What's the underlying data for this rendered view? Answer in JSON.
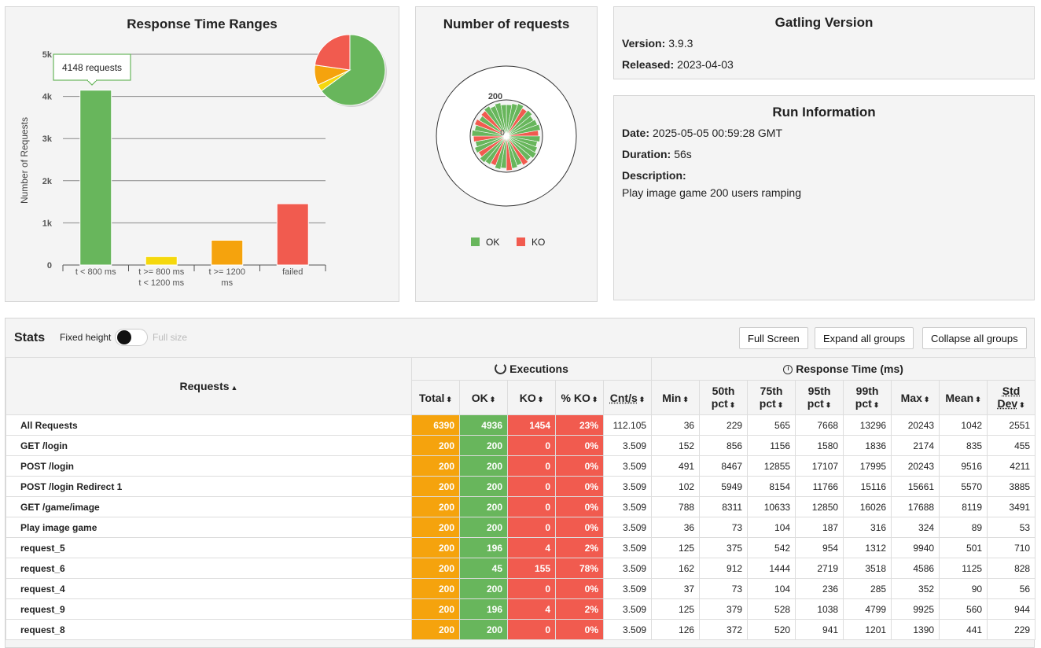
{
  "colors": {
    "ok": "#68b65c",
    "ko": "#f15b4f",
    "orange": "#f5a30d",
    "yellow": "#f5d80d"
  },
  "response_time_ranges": {
    "title": "Response Time Ranges",
    "tooltip": "4148 requests",
    "chart_data": {
      "type": "bar",
      "title": "Response Time Ranges",
      "ylabel": "Number of Requests",
      "ylim": [
        0,
        5000
      ],
      "ytick_labels": [
        "0",
        "1k",
        "2k",
        "3k",
        "4k",
        "5k"
      ],
      "categories": [
        {
          "line1": "t < 800 ms",
          "line2": ""
        },
        {
          "line1": "t >= 800 ms",
          "line2": "t < 1200 ms"
        },
        {
          "line1": "t >= 1200",
          "line2": "ms"
        },
        {
          "line1": "failed",
          "line2": ""
        }
      ],
      "values": [
        4148,
        200,
        588,
        1454
      ],
      "pie": [
        4148,
        200,
        588,
        1454
      ]
    }
  },
  "number_of_requests": {
    "title": "Number of requests",
    "tick_200": "200",
    "tick_0": "0",
    "legend": {
      "ok": "OK",
      "ko": "KO"
    }
  },
  "gatling": {
    "title": "Gatling Version",
    "version_label": "Version:",
    "version": "3.9.3",
    "released_label": "Released:",
    "released": "2023-04-03"
  },
  "run": {
    "title": "Run Information",
    "date_label": "Date:",
    "date": "2025-05-05 00:59:28 GMT",
    "duration_label": "Duration:",
    "duration": "56s",
    "description_label": "Description:",
    "description": "Play image game 200 users ramping"
  },
  "stats": {
    "title": "Stats",
    "fixed_height": "Fixed height",
    "full_size": "Full size",
    "full_screen": "Full Screen",
    "expand_all": "Expand all groups",
    "collapse_all": "Collapse all groups",
    "group_requests": "Requests",
    "group_executions": "Executions",
    "group_response_time": "Response Time (ms)",
    "columns": {
      "total": "Total",
      "ok": "OK",
      "ko": "KO",
      "pct_ko": "% KO",
      "cnts": "Cnt/s",
      "min": "Min",
      "p50a": "50th",
      "p50b": "pct",
      "p75a": "75th",
      "p75b": "pct",
      "p95a": "95th",
      "p95b": "pct",
      "p99a": "99th",
      "p99b": "pct",
      "max": "Max",
      "mean": "Mean",
      "stda": "Std",
      "stdb": "Dev"
    },
    "rows": [
      {
        "name": "All Requests",
        "total": "6390",
        "ok": "4936",
        "ko": "1454",
        "pct": "23%",
        "cnts": "112.105",
        "min": "36",
        "p50": "229",
        "p75": "565",
        "p95": "7668",
        "p99": "13296",
        "max": "20243",
        "mean": "1042",
        "std": "2551"
      },
      {
        "name": "GET /login",
        "total": "200",
        "ok": "200",
        "ko": "0",
        "pct": "0%",
        "cnts": "3.509",
        "min": "152",
        "p50": "856",
        "p75": "1156",
        "p95": "1580",
        "p99": "1836",
        "max": "2174",
        "mean": "835",
        "std": "455"
      },
      {
        "name": "POST /login",
        "total": "200",
        "ok": "200",
        "ko": "0",
        "pct": "0%",
        "cnts": "3.509",
        "min": "491",
        "p50": "8467",
        "p75": "12855",
        "p95": "17107",
        "p99": "17995",
        "max": "20243",
        "mean": "9516",
        "std": "4211"
      },
      {
        "name": "POST /login Redirect 1",
        "total": "200",
        "ok": "200",
        "ko": "0",
        "pct": "0%",
        "cnts": "3.509",
        "min": "102",
        "p50": "5949",
        "p75": "8154",
        "p95": "11766",
        "p99": "15116",
        "max": "15661",
        "mean": "5570",
        "std": "3885"
      },
      {
        "name": "GET /game/image",
        "total": "200",
        "ok": "200",
        "ko": "0",
        "pct": "0%",
        "cnts": "3.509",
        "min": "788",
        "p50": "8311",
        "p75": "10633",
        "p95": "12850",
        "p99": "16026",
        "max": "17688",
        "mean": "8119",
        "std": "3491"
      },
      {
        "name": "Play image game",
        "total": "200",
        "ok": "200",
        "ko": "0",
        "pct": "0%",
        "cnts": "3.509",
        "min": "36",
        "p50": "73",
        "p75": "104",
        "p95": "187",
        "p99": "316",
        "max": "324",
        "mean": "89",
        "std": "53"
      },
      {
        "name": "request_5",
        "total": "200",
        "ok": "196",
        "ko": "4",
        "pct": "2%",
        "cnts": "3.509",
        "min": "125",
        "p50": "375",
        "p75": "542",
        "p95": "954",
        "p99": "1312",
        "max": "9940",
        "mean": "501",
        "std": "710"
      },
      {
        "name": "request_6",
        "total": "200",
        "ok": "45",
        "ko": "155",
        "pct": "78%",
        "cnts": "3.509",
        "min": "162",
        "p50": "912",
        "p75": "1444",
        "p95": "2719",
        "p99": "3518",
        "max": "4586",
        "mean": "1125",
        "std": "828"
      },
      {
        "name": "request_4",
        "total": "200",
        "ok": "200",
        "ko": "0",
        "pct": "0%",
        "cnts": "3.509",
        "min": "37",
        "p50": "73",
        "p75": "104",
        "p95": "236",
        "p99": "285",
        "max": "352",
        "mean": "90",
        "std": "56"
      },
      {
        "name": "request_9",
        "total": "200",
        "ok": "196",
        "ko": "4",
        "pct": "2%",
        "cnts": "3.509",
        "min": "125",
        "p50": "379",
        "p75": "528",
        "p95": "1038",
        "p99": "4799",
        "max": "9925",
        "mean": "560",
        "std": "944"
      },
      {
        "name": "request_8",
        "total": "200",
        "ok": "200",
        "ko": "0",
        "pct": "0%",
        "cnts": "3.509",
        "min": "126",
        "p50": "372",
        "p75": "520",
        "p95": "941",
        "p99": "1201",
        "max": "1390",
        "mean": "441",
        "std": "229"
      }
    ]
  }
}
